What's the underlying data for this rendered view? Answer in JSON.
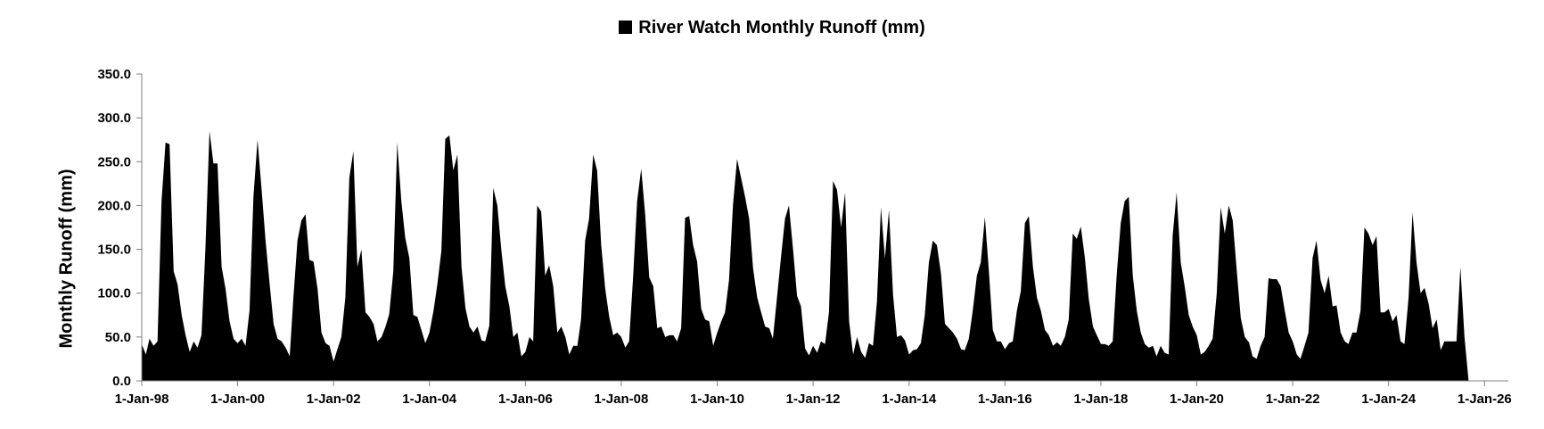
{
  "chart_data": {
    "type": "area",
    "title": "",
    "legend": {
      "position": "top-center",
      "entries": [
        "River Watch Monthly Runoff (mm)"
      ]
    },
    "series": [
      {
        "name": "River Watch Monthly Runoff (mm)",
        "color": "#000000",
        "start": "1998-01",
        "interval": "monthly",
        "values": [
          42,
          30,
          48,
          40,
          45,
          205,
          272,
          270,
          125,
          110,
          75,
          52,
          33,
          45,
          38,
          52,
          150,
          285,
          248,
          248,
          130,
          105,
          68,
          48,
          43,
          48,
          40,
          80,
          210,
          275,
          220,
          160,
          110,
          65,
          48,
          45,
          38,
          28,
          95,
          160,
          183,
          190,
          138,
          136,
          105,
          55,
          43,
          40,
          22,
          37,
          50,
          95,
          232,
          262,
          130,
          150,
          78,
          73,
          65,
          45,
          50,
          62,
          76,
          125,
          272,
          205,
          163,
          140,
          75,
          73,
          58,
          43,
          55,
          80,
          110,
          148,
          276,
          280,
          240,
          258,
          130,
          83,
          62,
          55,
          62,
          46,
          45,
          63,
          220,
          200,
          150,
          108,
          85,
          50,
          55,
          28,
          33,
          50,
          45,
          200,
          193,
          120,
          132,
          108,
          55,
          62,
          50,
          30,
          40,
          40,
          70,
          160,
          185,
          258,
          240,
          155,
          105,
          73,
          52,
          55,
          50,
          38,
          45,
          120,
          205,
          242,
          190,
          118,
          108,
          60,
          62,
          50,
          52,
          52,
          45,
          60,
          186,
          188,
          155,
          136,
          82,
          70,
          68,
          40,
          55,
          68,
          78,
          115,
          200,
          253,
          232,
          210,
          185,
          128,
          95,
          78,
          62,
          60,
          48,
          95,
          140,
          185,
          200,
          150,
          97,
          85,
          37,
          29,
          40,
          32,
          45,
          42,
          78,
          228,
          218,
          175,
          215,
          68,
          30,
          50,
          33,
          26,
          43,
          40,
          90,
          198,
          140,
          195,
          98,
          50,
          52,
          46,
          30,
          35,
          36,
          43,
          75,
          135,
          160,
          155,
          122,
          65,
          60,
          55,
          48,
          36,
          35,
          48,
          80,
          120,
          135,
          187,
          125,
          58,
          45,
          45,
          36,
          43,
          45,
          80,
          102,
          180,
          188,
          130,
          95,
          80,
          58,
          52,
          40,
          44,
          40,
          50,
          70,
          168,
          162,
          176,
          140,
          93,
          62,
          52,
          42,
          42,
          40,
          45,
          120,
          180,
          205,
          210,
          120,
          80,
          55,
          42,
          38,
          40,
          28,
          40,
          32,
          30,
          165,
          215,
          135,
          108,
          75,
          62,
          52,
          30,
          33,
          40,
          48,
          100,
          198,
          168,
          200,
          183,
          125,
          72,
          50,
          44,
          28,
          25,
          40,
          50,
          117,
          116,
          116,
          108,
          80,
          55,
          45,
          30,
          25,
          40,
          55,
          140,
          160,
          115,
          100,
          120,
          85,
          86,
          55,
          45,
          42,
          55,
          55,
          80,
          175,
          168,
          155,
          165,
          78,
          78,
          82,
          68,
          75,
          45,
          42,
          95,
          192,
          135,
          100,
          106,
          88,
          60,
          70,
          35,
          45,
          45,
          45,
          45,
          130,
          50,
          0
        ]
      }
    ],
    "xlim": [
      "1998-01-01",
      "2026-07-01"
    ],
    "xticks": [
      {
        "date": "1998-01-01",
        "label": "1-Jan-98"
      },
      {
        "date": "2000-01-01",
        "label": "1-Jan-00"
      },
      {
        "date": "2002-01-01",
        "label": "1-Jan-02"
      },
      {
        "date": "2004-01-01",
        "label": "1-Jan-04"
      },
      {
        "date": "2006-01-01",
        "label": "1-Jan-06"
      },
      {
        "date": "2008-01-01",
        "label": "1-Jan-08"
      },
      {
        "date": "2010-01-01",
        "label": "1-Jan-10"
      },
      {
        "date": "2012-01-01",
        "label": "1-Jan-12"
      },
      {
        "date": "2014-01-01",
        "label": "1-Jan-14"
      },
      {
        "date": "2016-01-01",
        "label": "1-Jan-16"
      },
      {
        "date": "2018-01-01",
        "label": "1-Jan-18"
      },
      {
        "date": "2020-01-01",
        "label": "1-Jan-20"
      },
      {
        "date": "2022-01-01",
        "label": "1-Jan-22"
      },
      {
        "date": "2024-01-01",
        "label": "1-Jan-24"
      },
      {
        "date": "2026-01-01",
        "label": "1-Jan-26"
      }
    ],
    "ylim": [
      0,
      350
    ],
    "yticks": [
      {
        "value": 0,
        "label": "0.0"
      },
      {
        "value": 50,
        "label": "50.0"
      },
      {
        "value": 100,
        "label": "100.0"
      },
      {
        "value": 150,
        "label": "150.0"
      },
      {
        "value": 200,
        "label": "200.0"
      },
      {
        "value": 250,
        "label": "250.0"
      },
      {
        "value": 300,
        "label": "300.0"
      },
      {
        "value": 350,
        "label": "350.0"
      }
    ],
    "xlabel": "",
    "ylabel": "Monthly Runoff (mm)",
    "grid": false
  }
}
